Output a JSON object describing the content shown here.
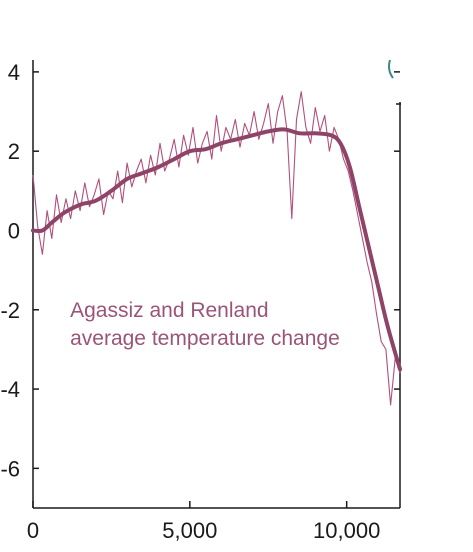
{
  "chart_data": {
    "type": "line",
    "title": "",
    "xlabel": "",
    "ylabel": "",
    "xlim": [
      0,
      11700
    ],
    "ylim": [
      -7,
      4.3
    ],
    "x_ticks": [
      0,
      5000,
      10000
    ],
    "x_tick_labels": [
      "0",
      "5,000",
      "10,000"
    ],
    "y_ticks": [
      4,
      2,
      0,
      -2,
      -4,
      -6
    ],
    "y_tick_labels": [
      "4",
      "2",
      "0",
      "-2",
      "-4",
      "-6"
    ],
    "grid": false,
    "legend": "none",
    "annotation": {
      "lines": [
        "Agassiz and Renland",
        "average temperature change"
      ],
      "x": 800,
      "y": -2.0
    },
    "colors": {
      "raw_series": "#b0507c",
      "smoothed_series": "#8e4368",
      "annotation": "#9a5478",
      "axis": "#1a1a1a"
    },
    "series": [
      {
        "kind": "raw",
        "x": [
          0,
          150,
          300,
          450,
          600,
          750,
          900,
          1050,
          1200,
          1350,
          1500,
          1650,
          1800,
          1950,
          2100,
          2250,
          2400,
          2550,
          2700,
          2850,
          3000,
          3150,
          3300,
          3450,
          3600,
          3750,
          3900,
          4050,
          4200,
          4350,
          4500,
          4650,
          4800,
          4950,
          5100,
          5250,
          5400,
          5550,
          5700,
          5850,
          6000,
          6150,
          6300,
          6450,
          6600,
          6750,
          6900,
          7050,
          7200,
          7350,
          7500,
          7650,
          7800,
          7950,
          8100,
          8250,
          8400,
          8550,
          8700,
          8850,
          9000,
          9150,
          9300,
          9450,
          9600,
          9750,
          9900,
          10050,
          10200,
          10350,
          10500,
          10650,
          10800,
          10950,
          11100,
          11250,
          11400,
          11550,
          11700
        ],
        "y": [
          1.4,
          0.1,
          -0.6,
          0.5,
          -0.2,
          0.9,
          0.2,
          0.8,
          0.3,
          1.0,
          0.5,
          1.2,
          0.6,
          0.9,
          1.3,
          0.4,
          1.0,
          0.8,
          1.5,
          0.7,
          1.7,
          1.1,
          1.5,
          1.8,
          1.2,
          1.9,
          1.4,
          2.2,
          1.5,
          1.8,
          2.3,
          1.6,
          2.4,
          1.9,
          2.6,
          1.7,
          2.2,
          2.5,
          1.8,
          2.9,
          2.0,
          2.6,
          2.3,
          2.8,
          2.1,
          2.7,
          2.4,
          3.0,
          2.3,
          2.7,
          3.2,
          2.2,
          3.0,
          3.4,
          2.5,
          0.3,
          2.8,
          3.5,
          2.6,
          2.2,
          3.1,
          2.5,
          2.9,
          2.0,
          2.6,
          2.3,
          1.8,
          1.5,
          1.0,
          0.4,
          -0.2,
          -0.8,
          -1.3,
          -2.1,
          -2.8,
          -3.0,
          -4.4,
          -3.2,
          -3.6
        ]
      },
      {
        "kind": "smoothed",
        "x": [
          0,
          300,
          600,
          1000,
          1500,
          2000,
          2500,
          3000,
          3500,
          4000,
          4500,
          5000,
          5500,
          6000,
          6500,
          7000,
          7500,
          8000,
          8500,
          9000,
          9500,
          9800,
          10100,
          10400,
          10700,
          11000,
          11300,
          11700
        ],
        "y": [
          0.0,
          0.0,
          0.2,
          0.45,
          0.65,
          0.75,
          1.0,
          1.3,
          1.45,
          1.6,
          1.8,
          2.0,
          2.05,
          2.2,
          2.3,
          2.4,
          2.5,
          2.55,
          2.45,
          2.45,
          2.4,
          2.2,
          1.6,
          0.6,
          -0.4,
          -1.4,
          -2.4,
          -3.5
        ]
      }
    ]
  }
}
